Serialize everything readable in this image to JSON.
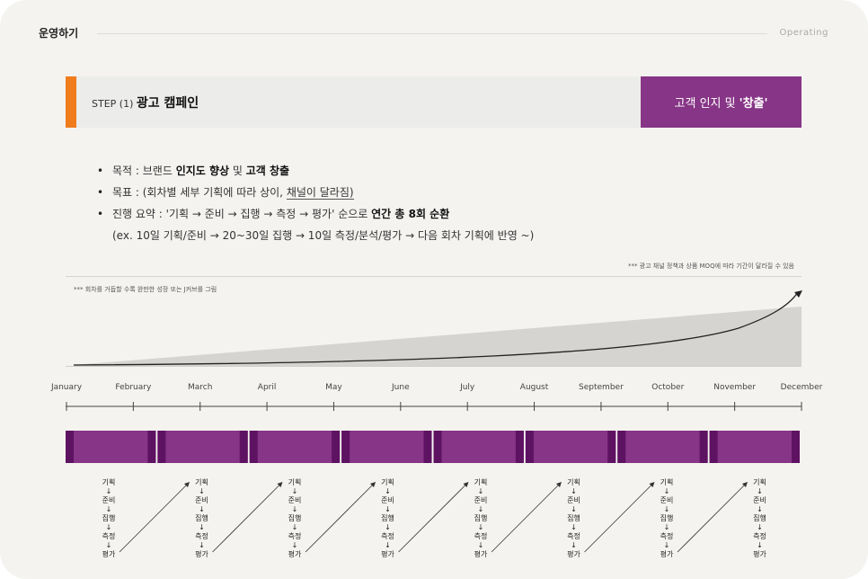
{
  "header": {
    "title": "운영하기",
    "right_label": "Operating"
  },
  "banner": {
    "step_prefix": "STEP (1) ",
    "step_title": "광고 캠페인",
    "right_text_normal": "고객 인지 및",
    "right_text_bold": "'창출'",
    "accent_color": "#f07c1c",
    "right_color": "#873586"
  },
  "bullets": {
    "b1_prefix": "목적 : 브랜드 ",
    "b1_bold1": "인지도 향상",
    "b1_mid": " 및 ",
    "b1_bold2": "고객 창출",
    "b2_prefix": "목표 : (회차별 세부 기획에 따라 상이, ",
    "b2_underline": "채널이 달라짐)",
    "b3_prefix": "진행 요약 : '기획 → 준비 → 집행 → 측정 → 평가' 순으로 ",
    "b3_bold": "연간 총 8회 순환",
    "b4": "(ex. 10일 기획/준비 → 20~30일 집행 → 10일 측정/분석/평가 → 다음 회차 기획에 반영 ~)"
  },
  "notes": {
    "right": "*** 광고 채널 정책과 상품 MOQ에 따라 기간이 달라질 수 있음",
    "left": "*** 회차를 거듭할 수록 완만한 성장 또는 J커브를 그림"
  },
  "timeline": {
    "months": [
      "January",
      "February",
      "March",
      "April",
      "May",
      "June",
      "July",
      "August",
      "September",
      "October",
      "November",
      "December"
    ],
    "cycle_steps": [
      "기획",
      "준비",
      "집행",
      "측정",
      "평가"
    ],
    "arrow_glyph": "↓",
    "cycle_count": 8,
    "bar_color": "#873586",
    "bar_dark_color": "#5e1262"
  }
}
